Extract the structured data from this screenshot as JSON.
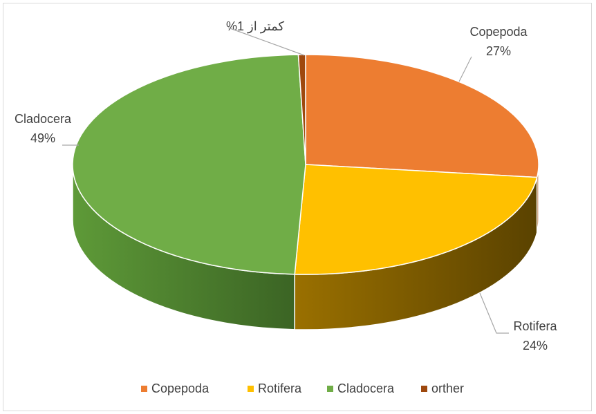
{
  "chart_data": {
    "type": "pie",
    "variant": "3d",
    "title": "",
    "slices": [
      {
        "name": "Copepoda",
        "value": 27,
        "percent_label": "27%",
        "color": "#ED7D31",
        "side_color": "#A04F10"
      },
      {
        "name": "Rotifera",
        "value": 24,
        "percent_label": "24%",
        "color": "#FFC000",
        "side_color": "#7F5A00"
      },
      {
        "name": "Cladocera",
        "value": 49,
        "percent_label": "49%",
        "color": "#70AD47",
        "side_color": "#3F6B27"
      },
      {
        "name": "orther",
        "value": 0.5,
        "percent_label": "",
        "color": "#9E480E",
        "side_color": "#5E2A08"
      }
    ],
    "annotation": "کمتر از 1%",
    "legend": {
      "position": "bottom",
      "entries": [
        "Copepoda",
        "Rotifera",
        "Cladocera",
        "orther"
      ]
    }
  }
}
